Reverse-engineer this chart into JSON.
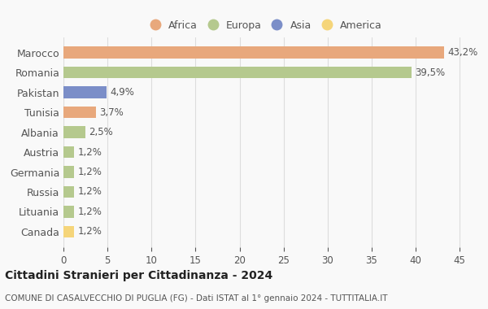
{
  "categories": [
    "Canada",
    "Lituania",
    "Russia",
    "Germania",
    "Austria",
    "Albania",
    "Tunisia",
    "Pakistan",
    "Romania",
    "Marocco"
  ],
  "values": [
    1.2,
    1.2,
    1.2,
    1.2,
    1.2,
    2.5,
    3.7,
    4.9,
    39.5,
    43.2
  ],
  "labels": [
    "1,2%",
    "1,2%",
    "1,2%",
    "1,2%",
    "1,2%",
    "2,5%",
    "3,7%",
    "4,9%",
    "39,5%",
    "43,2%"
  ],
  "continents": [
    "America",
    "Europa",
    "Europa",
    "Europa",
    "Europa",
    "Europa",
    "Africa",
    "Asia",
    "Europa",
    "Africa"
  ],
  "colors": {
    "Africa": "#E8A87C",
    "Europa": "#B5C98E",
    "Asia": "#7B8EC8",
    "America": "#F5D57A"
  },
  "legend_order": [
    "Africa",
    "Europa",
    "Asia",
    "America"
  ],
  "legend_colors": [
    "#E8A87C",
    "#B5C98E",
    "#7B8EC8",
    "#F5D57A"
  ],
  "xlim": [
    0,
    46
  ],
  "xticks": [
    0,
    5,
    10,
    15,
    20,
    25,
    30,
    35,
    40,
    45
  ],
  "title": "Cittadini Stranieri per Cittadinanza - 2024",
  "subtitle": "COMUNE DI CASALVECCHIO DI PUGLIA (FG) - Dati ISTAT al 1° gennaio 2024 - TUTTITALIA.IT",
  "bg_color": "#f9f9f9",
  "grid_color": "#dddddd"
}
